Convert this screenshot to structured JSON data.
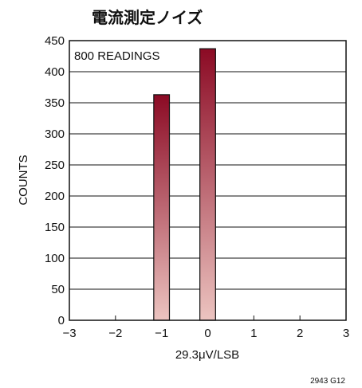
{
  "chart_data": {
    "type": "bar",
    "title": "電流測定ノイズ",
    "xlabel": "29.3μV/LSB",
    "ylabel": "COUNTS",
    "annotation": "800 READINGS",
    "figure_id": "2943 G12",
    "xlim": [
      -3,
      3
    ],
    "ylim": [
      0,
      450
    ],
    "x_ticks": [
      -3,
      -2,
      -1,
      0,
      1,
      2,
      3
    ],
    "x_tick_labels": [
      "−3",
      "−2",
      "−1",
      "0",
      "1",
      "2",
      "3"
    ],
    "y_ticks": [
      0,
      50,
      100,
      150,
      200,
      250,
      300,
      350,
      400,
      450
    ],
    "x": [
      -1,
      0
    ],
    "values": [
      363,
      437
    ],
    "grid": true,
    "colors": {
      "bar_top": "#8b0a24",
      "bar_bottom": "#ecc4c0",
      "axis": "#111111"
    }
  }
}
